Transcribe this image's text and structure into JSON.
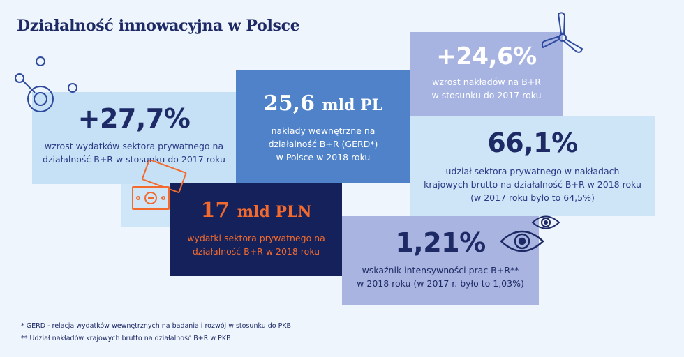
{
  "title": "Działalność innowacyjna w Polsce",
  "stats": {
    "private_growth": {
      "value": "+27,7%",
      "desc_line1": "wzrost wydatków sektora prywatnego na",
      "desc_line2": "działalność B+R w stosunku do 2017 roku"
    },
    "gerd": {
      "value": "25,6",
      "unit": "mld PL",
      "desc_line1": "nakłady wewnętrzne na",
      "desc_line2": "działalność B+R (GERD*)",
      "desc_line3": "w Polsce w 2018 roku"
    },
    "growth_br": {
      "value": "+24,6%",
      "desc_line1": "wzrost nakładów na B+R",
      "desc_line2": "w stosunku do 2017 roku"
    },
    "private_share": {
      "value": "66,1%",
      "desc_line1": "udział sektora prywatnego w nakładach",
      "desc_line2": "krajowych brutto na działalność B+R w 2018 roku",
      "desc_line3": "(w 2017 roku było to 64,5%)"
    },
    "private_spend": {
      "value": "17",
      "unit": "mld PLN",
      "desc_line1": "wydatki sektora prywatnego na",
      "desc_line2": "działalność B+R w 2018 roku"
    },
    "intensity": {
      "value": "1,21%",
      "desc_line1": "wskaźnik intensywności prac B+R**",
      "desc_line2": "w 2018 roku (w 2017 r. było to 1,03%)"
    }
  },
  "footnotes": {
    "note1": "*   GERD - relacja wydatków wewnętrznych na badania i rozwój w stosunku do PKB",
    "note2": "** Udział nakładów krajowych brutto na działalność B+R w PKB"
  },
  "colors": {
    "navy": "#1d2a66",
    "orange": "#f26a2e",
    "blue": "#4f82c8",
    "light_blue": "#c6e1f6",
    "lavender": "#a9b5e0"
  },
  "icons": [
    "molecule-icon",
    "wind-turbine-icon",
    "money-icon",
    "eye-icon"
  ]
}
